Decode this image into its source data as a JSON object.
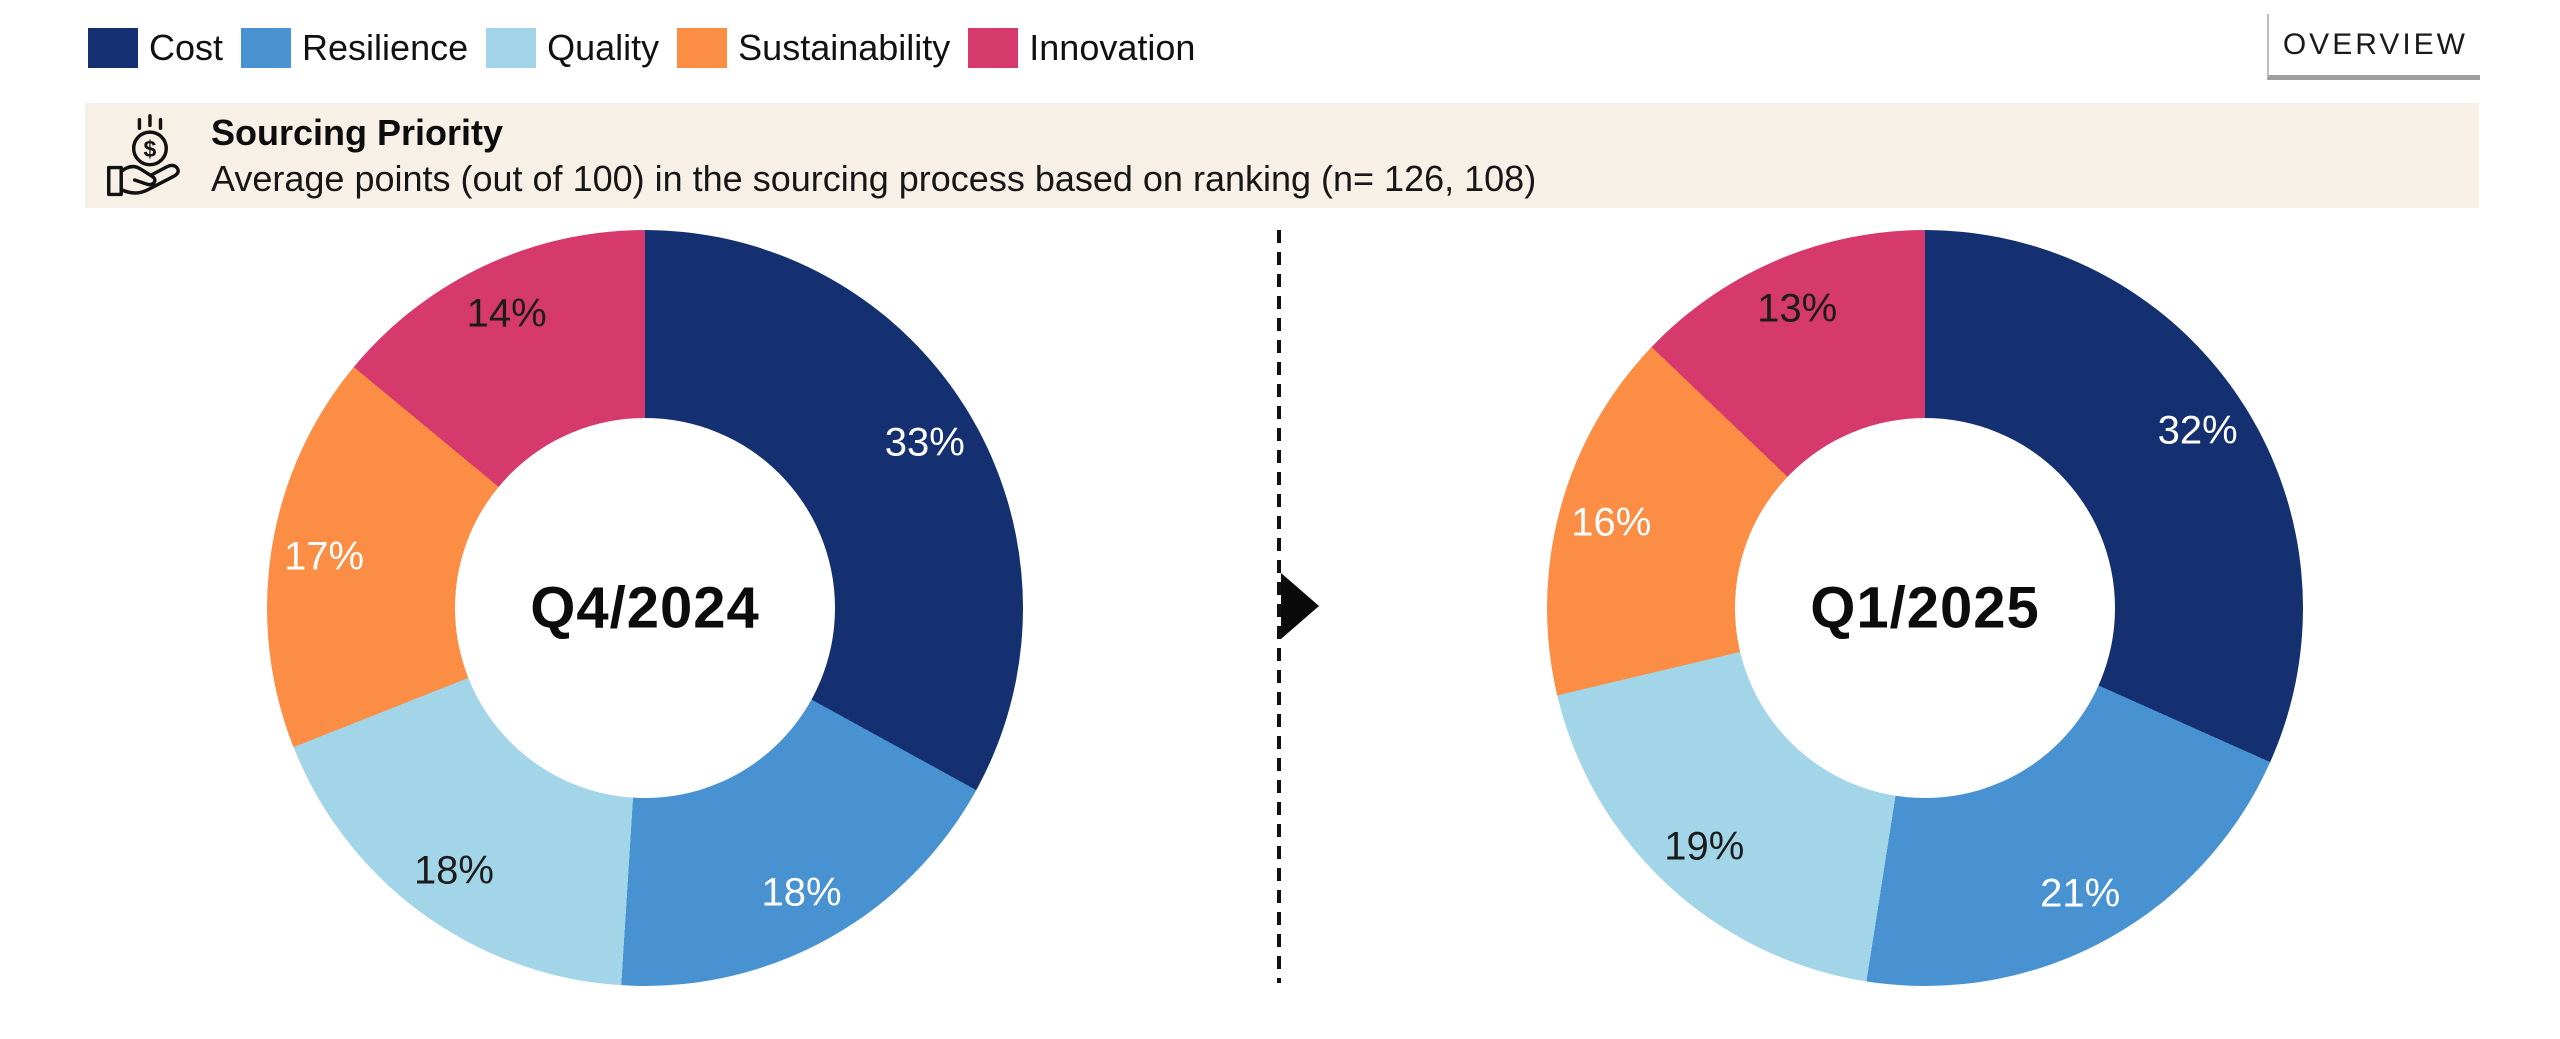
{
  "legend": {
    "items": [
      {
        "label": "Cost",
        "color": "#143070"
      },
      {
        "label": "Resilience",
        "color": "#4992d2"
      },
      {
        "label": "Quality",
        "color": "#a3d5e8"
      },
      {
        "label": "Sustainability",
        "color": "#fb8d44"
      },
      {
        "label": "Innovation",
        "color": "#d6396b"
      }
    ]
  },
  "overview_label": "OVERVIEW",
  "header": {
    "title": "Sourcing Priority",
    "subtitle": "Average points (out of 100) in the sourcing process based on ranking (n= 126, 108)",
    "icon": "hand-holding-dollar-icon",
    "background": "#f7f0e7"
  },
  "chart_data": [
    {
      "type": "pie",
      "subtype": "donut",
      "title": "Q4/2024",
      "categories": [
        "Cost",
        "Resilience",
        "Quality",
        "Sustainability",
        "Innovation"
      ],
      "values": [
        33,
        18,
        18,
        17,
        14
      ],
      "labels_display": [
        "33%",
        "18%",
        "18%",
        "17%",
        "14%"
      ],
      "colors": [
        "#143070",
        "#4992d2",
        "#a3d5e8",
        "#fb8d44",
        "#d6396b"
      ],
      "label_text_colors": [
        "#ffffff",
        "#ffffff",
        "#1c1c1c",
        "#ffffff",
        "#1c1c1c"
      ],
      "start_angle_deg": 0,
      "direction": "clockwise"
    },
    {
      "type": "pie",
      "subtype": "donut",
      "title": "Q1/2025",
      "categories": [
        "Cost",
        "Resilience",
        "Quality",
        "Sustainability",
        "Innovation"
      ],
      "values": [
        32,
        21,
        19,
        16,
        13
      ],
      "labels_display": [
        "32%",
        "21%",
        "19%",
        "16%",
        "13%"
      ],
      "colors": [
        "#143070",
        "#4992d2",
        "#a3d5e8",
        "#fb8d44",
        "#d6396b"
      ],
      "label_text_colors": [
        "#ffffff",
        "#ffffff",
        "#1c1c1c",
        "#ffffff",
        "#1c1c1c"
      ],
      "start_angle_deg": 0,
      "direction": "clockwise"
    }
  ],
  "divider": {
    "style": "dashed",
    "arrow_direction": "right"
  }
}
